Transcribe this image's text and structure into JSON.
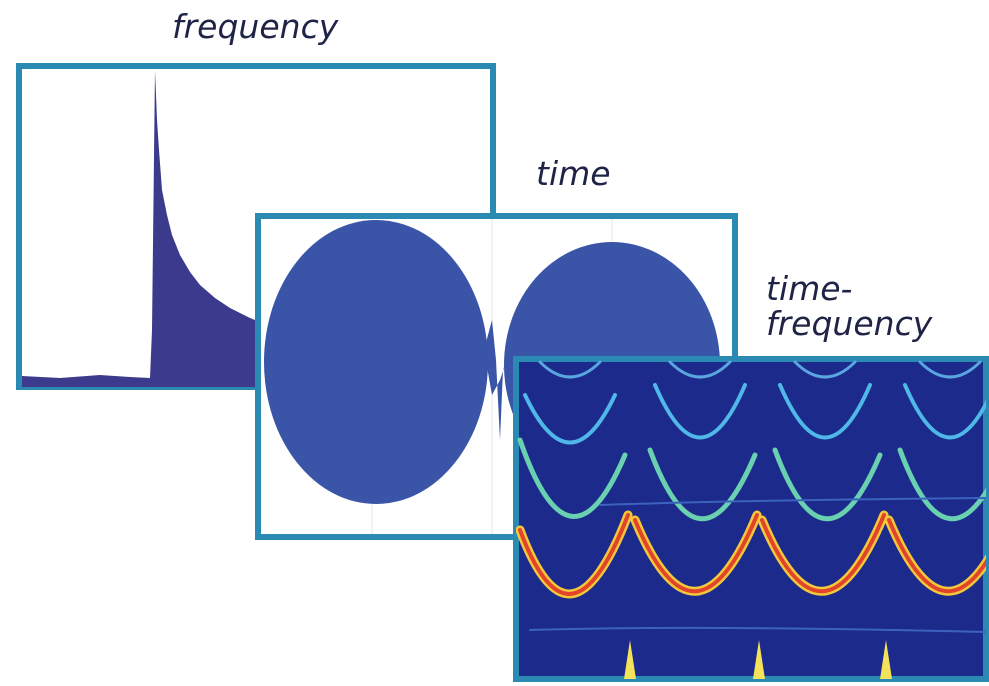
{
  "labels": {
    "frequency": "frequency",
    "time": "time",
    "time_frequency": [
      "time-",
      "frequency"
    ]
  }
}
